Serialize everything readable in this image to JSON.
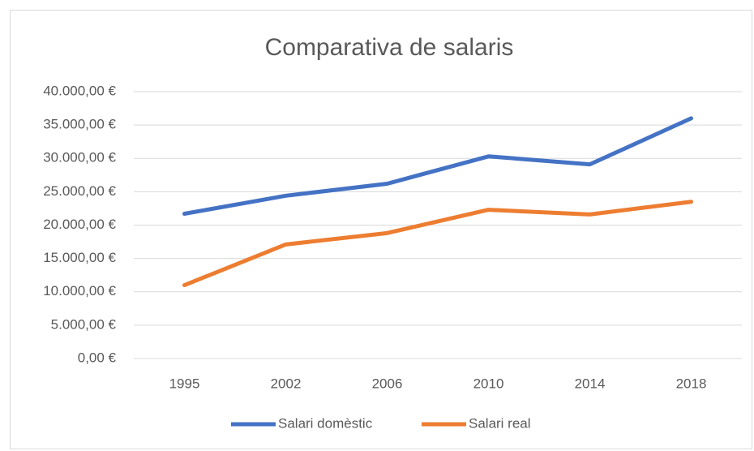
{
  "chart_data": {
    "type": "line",
    "title": "Comparativa de salaris",
    "categories": [
      "1995",
      "2002",
      "2006",
      "2010",
      "2014",
      "2018"
    ],
    "series": [
      {
        "name": "Salari domèstic",
        "color": "#4472c4",
        "values": [
          21700,
          24400,
          26200,
          30300,
          29100,
          36000
        ]
      },
      {
        "name": "Salari real",
        "color": "#ed7d31",
        "values": [
          11000,
          17100,
          18800,
          22300,
          21600,
          23500
        ]
      }
    ],
    "ylim": [
      0,
      40000
    ],
    "yticks": [
      {
        "value": 0,
        "label": "0,00 €"
      },
      {
        "value": 5000,
        "label": "5.000,00 €"
      },
      {
        "value": 10000,
        "label": "10.000,00 €"
      },
      {
        "value": 15000,
        "label": "15.000,00 €"
      },
      {
        "value": 20000,
        "label": "20.000,00 €"
      },
      {
        "value": 25000,
        "label": "25.000,00 €"
      },
      {
        "value": 30000,
        "label": "30.000,00 €"
      },
      {
        "value": 35000,
        "label": "35.000,00 €"
      },
      {
        "value": 40000,
        "label": "40.000,00 €"
      }
    ],
    "grid": true,
    "legend": "bottom"
  }
}
